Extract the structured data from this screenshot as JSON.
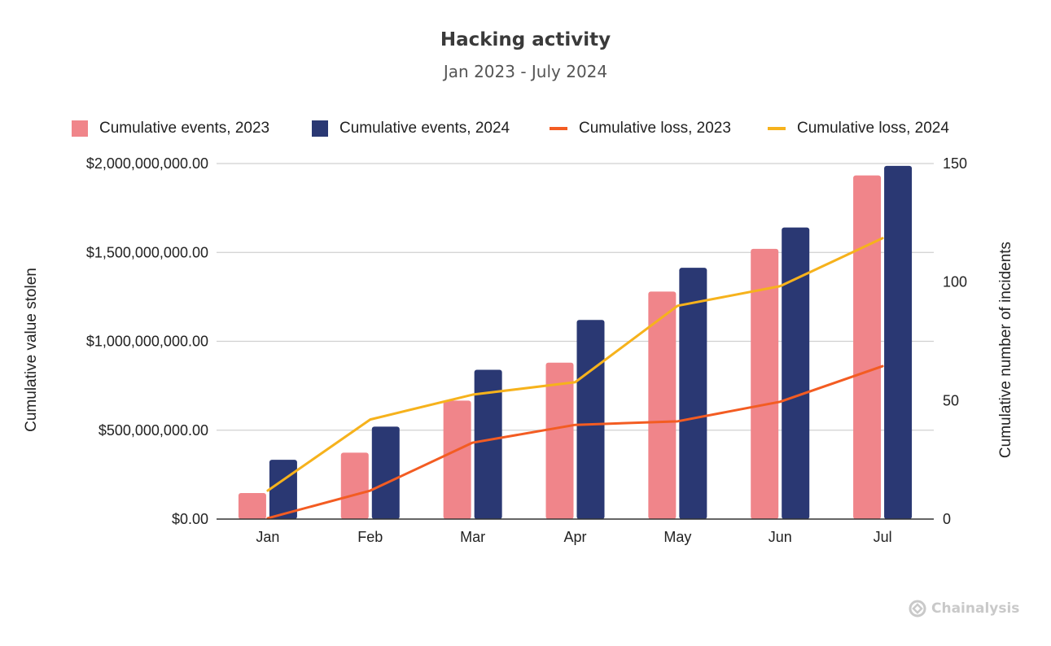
{
  "chart_data": {
    "type": "bar",
    "title": "Hacking activity",
    "subtitle": "Jan 2023 - July 2024",
    "categories": [
      "Jan",
      "Feb",
      "Mar",
      "Apr",
      "May",
      "Jun",
      "Jul"
    ],
    "ylabel_left": "Cumulative value stolen",
    "ylabel_right": "Cumulative number of incidents",
    "y_left_range": [
      0,
      2000000000
    ],
    "y_left_ticks": [
      "$0.00",
      "$500,000,000.00",
      "$1,000,000,000.00",
      "$1,500,000,000.00",
      "$2,000,000,000.00"
    ],
    "y_right_range": [
      0,
      150
    ],
    "y_right_ticks": [
      "0",
      "50",
      "100",
      "150"
    ],
    "grid": true,
    "legend_position": "top",
    "series": [
      {
        "name": "Cumulative events, 2023",
        "kind": "bar",
        "axis": "right",
        "color": "#f0858a",
        "values": [
          11,
          28,
          50,
          66,
          96,
          114,
          145
        ]
      },
      {
        "name": "Cumulative events, 2024",
        "kind": "bar",
        "axis": "right",
        "color": "#2a3873",
        "values": [
          25,
          39,
          63,
          84,
          106,
          123,
          149
        ]
      },
      {
        "name": "Cumulative loss, 2023",
        "kind": "line",
        "axis": "left",
        "color": "#f35c22",
        "values": [
          5000000,
          160000000,
          430000000,
          530000000,
          550000000,
          660000000,
          860000000
        ]
      },
      {
        "name": "Cumulative loss, 2024",
        "kind": "line",
        "axis": "left",
        "color": "#f6b21c",
        "values": [
          160000000,
          560000000,
          700000000,
          770000000,
          1200000000,
          1310000000,
          1580000000
        ]
      }
    ]
  },
  "brand": {
    "name": "Chainalysis",
    "icon": "chainalysis-logo-icon"
  }
}
